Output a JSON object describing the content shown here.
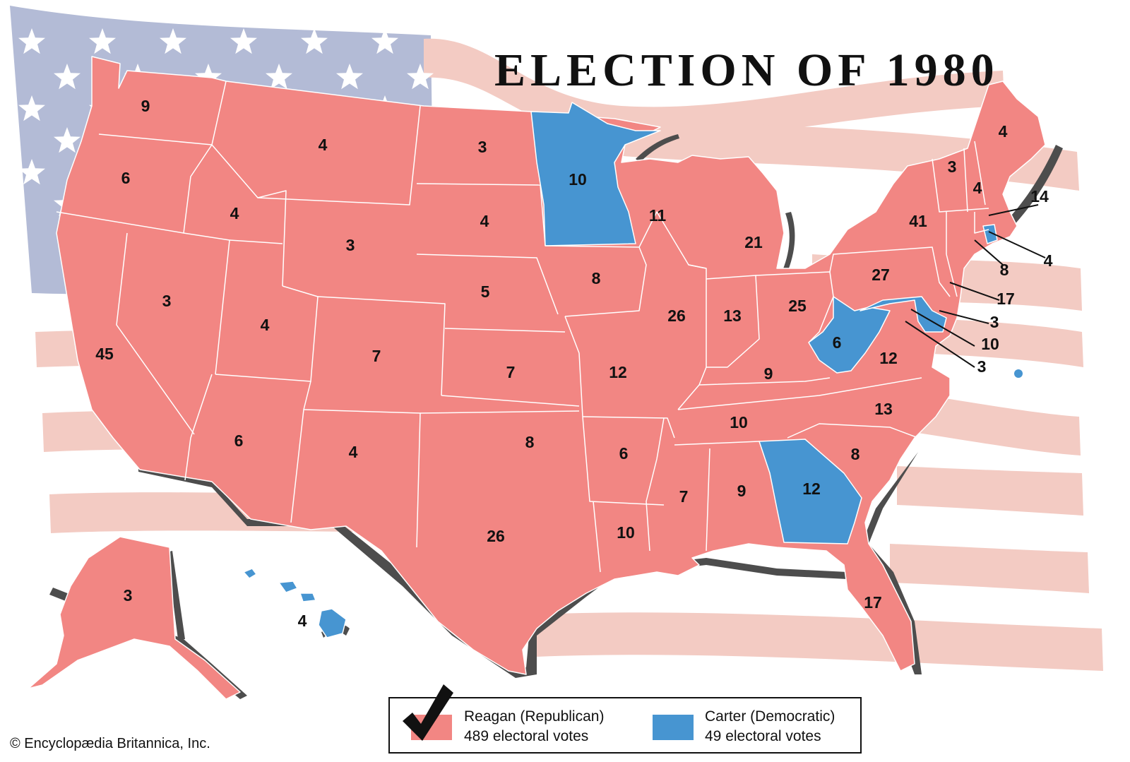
{
  "title": "ELECTION OF 1980",
  "credit": "© Encyclopædia Britannica, Inc.",
  "colors": {
    "republican": "#f28683",
    "democratic": "#4795d1",
    "flag_blue": "#b3bbd6",
    "flag_stripe": "#f3cbc3",
    "shadow": "#4d4d4d"
  },
  "legend": {
    "reagan": {
      "name": "Reagan (Republican)",
      "votes": "489 electoral votes",
      "icon": "checkmark-icon"
    },
    "carter": {
      "name": "Carter (Democratic)",
      "votes": "49 electoral votes"
    }
  },
  "states": [
    {
      "abbr": "WA",
      "votes": "9",
      "winner": "reagan"
    },
    {
      "abbr": "OR",
      "votes": "6",
      "winner": "reagan"
    },
    {
      "abbr": "CA",
      "votes": "45",
      "winner": "reagan"
    },
    {
      "abbr": "NV",
      "votes": "3",
      "winner": "reagan"
    },
    {
      "abbr": "ID",
      "votes": "4",
      "winner": "reagan"
    },
    {
      "abbr": "MT",
      "votes": "4",
      "winner": "reagan"
    },
    {
      "abbr": "WY",
      "votes": "3",
      "winner": "reagan"
    },
    {
      "abbr": "UT",
      "votes": "4",
      "winner": "reagan"
    },
    {
      "abbr": "AZ",
      "votes": "6",
      "winner": "reagan"
    },
    {
      "abbr": "CO",
      "votes": "7",
      "winner": "reagan"
    },
    {
      "abbr": "NM",
      "votes": "4",
      "winner": "reagan"
    },
    {
      "abbr": "ND",
      "votes": "3",
      "winner": "reagan"
    },
    {
      "abbr": "SD",
      "votes": "4",
      "winner": "reagan"
    },
    {
      "abbr": "NE",
      "votes": "5",
      "winner": "reagan"
    },
    {
      "abbr": "KS",
      "votes": "7",
      "winner": "reagan"
    },
    {
      "abbr": "OK",
      "votes": "8",
      "winner": "reagan"
    },
    {
      "abbr": "TX",
      "votes": "26",
      "winner": "reagan"
    },
    {
      "abbr": "MN",
      "votes": "10",
      "winner": "carter"
    },
    {
      "abbr": "IA",
      "votes": "8",
      "winner": "reagan"
    },
    {
      "abbr": "MO",
      "votes": "12",
      "winner": "reagan"
    },
    {
      "abbr": "AR",
      "votes": "6",
      "winner": "reagan"
    },
    {
      "abbr": "LA",
      "votes": "10",
      "winner": "reagan"
    },
    {
      "abbr": "WI",
      "votes": "11",
      "winner": "reagan"
    },
    {
      "abbr": "IL",
      "votes": "26",
      "winner": "reagan"
    },
    {
      "abbr": "MI",
      "votes": "21",
      "winner": "reagan"
    },
    {
      "abbr": "IN",
      "votes": "13",
      "winner": "reagan"
    },
    {
      "abbr": "OH",
      "votes": "25",
      "winner": "reagan"
    },
    {
      "abbr": "KY",
      "votes": "9",
      "winner": "reagan"
    },
    {
      "abbr": "TN",
      "votes": "10",
      "winner": "reagan"
    },
    {
      "abbr": "MS",
      "votes": "7",
      "winner": "reagan"
    },
    {
      "abbr": "AL",
      "votes": "9",
      "winner": "reagan"
    },
    {
      "abbr": "GA",
      "votes": "12",
      "winner": "carter"
    },
    {
      "abbr": "FL",
      "votes": "17",
      "winner": "reagan"
    },
    {
      "abbr": "SC",
      "votes": "8",
      "winner": "reagan"
    },
    {
      "abbr": "NC",
      "votes": "13",
      "winner": "reagan"
    },
    {
      "abbr": "VA",
      "votes": "12",
      "winner": "reagan"
    },
    {
      "abbr": "WV",
      "votes": "6",
      "winner": "carter"
    },
    {
      "abbr": "PA",
      "votes": "27",
      "winner": "reagan"
    },
    {
      "abbr": "NY",
      "votes": "41",
      "winner": "reagan"
    },
    {
      "abbr": "VT",
      "votes": "3",
      "winner": "reagan"
    },
    {
      "abbr": "NH",
      "votes": "4",
      "winner": "reagan"
    },
    {
      "abbr": "ME",
      "votes": "4",
      "winner": "reagan"
    },
    {
      "abbr": "MA",
      "votes": "14",
      "winner": "reagan"
    },
    {
      "abbr": "RI",
      "votes": "4",
      "winner": "carter"
    },
    {
      "abbr": "CT",
      "votes": "8",
      "winner": "reagan"
    },
    {
      "abbr": "NJ",
      "votes": "17",
      "winner": "reagan"
    },
    {
      "abbr": "DE",
      "votes": "3",
      "winner": "reagan"
    },
    {
      "abbr": "MD",
      "votes": "10",
      "winner": "carter"
    },
    {
      "abbr": "DC",
      "votes": "3",
      "winner": "carter"
    },
    {
      "abbr": "AK",
      "votes": "3",
      "winner": "reagan"
    },
    {
      "abbr": "HI",
      "votes": "4",
      "winner": "carter"
    }
  ]
}
